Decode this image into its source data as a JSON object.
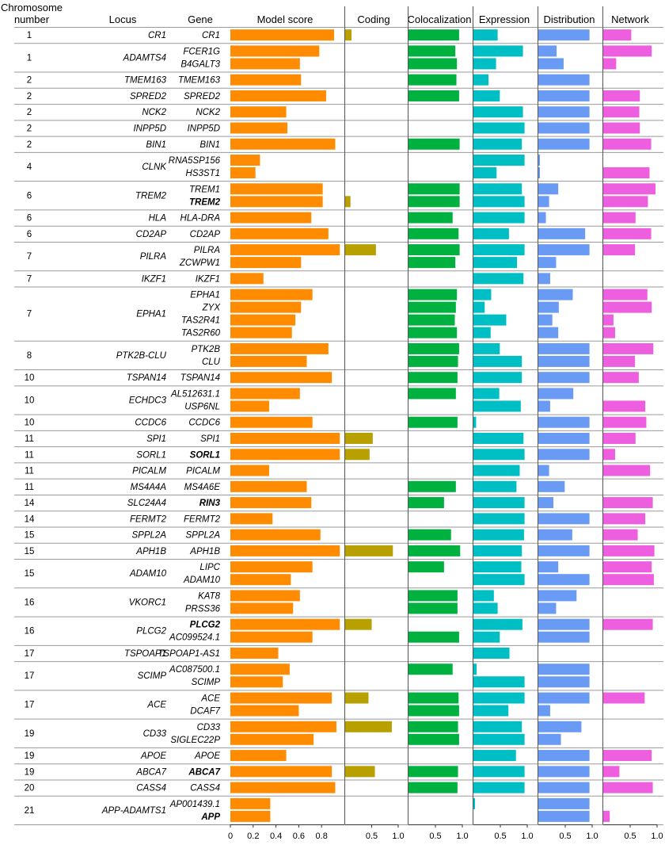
{
  "headers": {
    "chromosome": [
      "Chromosome",
      "number"
    ],
    "locus": "Locus",
    "gene": "Gene",
    "model_score": "Model score",
    "coding": "Coding",
    "colocalization": "Colocalization",
    "expression": "Expression",
    "distribution": "Distribution",
    "network": "Network"
  },
  "colors": {
    "model_score": "#ff8c00",
    "coding": "#b8a000",
    "colocalization": "#00b140",
    "expression": "#00bfc4",
    "distribution": "#6a9bf4",
    "network": "#ee5fe0"
  },
  "chart_data": {
    "type": "bar",
    "orientation": "horizontal",
    "panels": [
      {
        "key": "model_score",
        "ticks": [
          "0",
          "0.2",
          "0.4",
          "0.6",
          "0.8"
        ],
        "xlim": [
          0,
          1
        ]
      },
      {
        "key": "coding",
        "ticks": [
          "0.5",
          "1.0"
        ],
        "xlim": [
          0,
          1
        ]
      },
      {
        "key": "colocalization",
        "ticks": [
          "0.5",
          "1.0"
        ],
        "xlim": [
          0,
          1
        ]
      },
      {
        "key": "expression",
        "ticks": [
          "0.5",
          "1.0"
        ],
        "xlim": [
          0,
          1
        ]
      },
      {
        "key": "distribution",
        "ticks": [
          "0.5",
          "1.0"
        ],
        "xlim": [
          0,
          1
        ]
      },
      {
        "key": "network",
        "ticks": [
          "0.5",
          "1.0"
        ],
        "xlim": [
          0,
          1
        ]
      }
    ],
    "loci": [
      {
        "chr": "1",
        "locus": "CR1",
        "genes": [
          {
            "name": "CR1",
            "model_score": 0.91,
            "coding": 0.12,
            "colocalization": 0.94,
            "expression": 0.45,
            "distribution": 0.95,
            "network": 0.52
          }
        ]
      },
      {
        "chr": "1",
        "locus": "ADAMTS4",
        "genes": [
          {
            "name": "FCER1G",
            "model_score": 0.78,
            "colocalization": 0.87,
            "expression": 0.92,
            "distribution": 0.34,
            "network": 0.9
          },
          {
            "name": "B4GALT3",
            "model_score": 0.61,
            "colocalization": 0.9,
            "expression": 0.42,
            "distribution": 0.47,
            "network": 0.24
          }
        ]
      },
      {
        "chr": "2",
        "locus": "TMEM163",
        "genes": [
          {
            "name": "TMEM163",
            "model_score": 0.62,
            "colocalization": 0.89,
            "expression": 0.28,
            "distribution": 0.95
          }
        ]
      },
      {
        "chr": "2",
        "locus": "SPRED2",
        "genes": [
          {
            "name": "SPRED2",
            "model_score": 0.84,
            "colocalization": 0.94,
            "expression": 0.49,
            "distribution": 0.95,
            "network": 0.68
          }
        ]
      },
      {
        "chr": "2",
        "locus": "NCK2",
        "genes": [
          {
            "name": "NCK2",
            "model_score": 0.49,
            "expression": 0.92,
            "distribution": 0.95,
            "network": 0.67
          }
        ]
      },
      {
        "chr": "2",
        "locus": "INPP5D",
        "genes": [
          {
            "name": "INPP5D",
            "model_score": 0.5,
            "expression": 0.95,
            "distribution": 0.95,
            "network": 0.68
          }
        ]
      },
      {
        "chr": "2",
        "locus": "BIN1",
        "genes": [
          {
            "name": "BIN1",
            "model_score": 0.92,
            "colocalization": 0.95,
            "expression": 0.9,
            "distribution": 0.95,
            "network": 0.89
          }
        ]
      },
      {
        "chr": "4",
        "locus": "CLNK",
        "genes": [
          {
            "name": "RNA5SP156",
            "model_score": 0.26,
            "expression": 0.95,
            "distribution": 0.03
          },
          {
            "name": "HS3ST1",
            "model_score": 0.22,
            "expression": 0.43,
            "distribution": 0.03,
            "network": 0.86
          }
        ]
      },
      {
        "chr": "6",
        "locus": "TREM2",
        "genes": [
          {
            "name": "TREM1",
            "model_score": 0.81,
            "colocalization": 0.95,
            "expression": 0.9,
            "distribution": 0.37,
            "network": 0.97
          },
          {
            "name": "TREM2",
            "bold": true,
            "model_score": 0.81,
            "coding": 0.1,
            "colocalization": 0.95,
            "expression": 0.95,
            "distribution": 0.2,
            "network": 0.83
          }
        ]
      },
      {
        "chr": "6",
        "locus": "HLA",
        "genes": [
          {
            "name": "HLA-DRA",
            "model_score": 0.71,
            "colocalization": 0.82,
            "expression": 0.95,
            "distribution": 0.14,
            "network": 0.6
          }
        ]
      },
      {
        "chr": "6",
        "locus": "CD2AP",
        "genes": [
          {
            "name": "CD2AP",
            "model_score": 0.86,
            "colocalization": 0.93,
            "expression": 0.66,
            "distribution": 0.87,
            "network": 0.89
          }
        ]
      },
      {
        "chr": "7",
        "locus": "PILRA",
        "genes": [
          {
            "name": "PILRA",
            "model_score": 0.96,
            "coding": 0.58,
            "colocalization": 0.95,
            "expression": 0.95,
            "distribution": 0.95,
            "network": 0.59
          },
          {
            "name": "ZCWPW1",
            "model_score": 0.62,
            "colocalization": 0.87,
            "expression": 0.81,
            "distribution": 0.33
          }
        ]
      },
      {
        "chr": "7",
        "locus": "IKZF1",
        "genes": [
          {
            "name": "IKZF1",
            "model_score": 0.29,
            "expression": 0.93,
            "distribution": 0.22
          }
        ]
      },
      {
        "chr": "7",
        "locus": "EPHA1",
        "genes": [
          {
            "name": "EPHA1",
            "model_score": 0.72,
            "colocalization": 0.9,
            "expression": 0.33,
            "distribution": 0.64,
            "network": 0.82
          },
          {
            "name": "ZYX",
            "model_score": 0.62,
            "colocalization": 0.88,
            "expression": 0.21,
            "distribution": 0.38,
            "network": 0.9
          },
          {
            "name": "TAS2R41",
            "model_score": 0.57,
            "colocalization": 0.86,
            "expression": 0.61,
            "distribution": 0.26,
            "network": 0.19
          },
          {
            "name": "TAS2R60",
            "model_score": 0.54,
            "colocalization": 0.9,
            "expression": 0.32,
            "distribution": 0.37,
            "network": 0.22
          }
        ]
      },
      {
        "chr": "8",
        "locus": "PTK2B-CLU",
        "genes": [
          {
            "name": "PTK2B",
            "model_score": 0.86,
            "colocalization": 0.94,
            "expression": 0.49,
            "distribution": 0.95,
            "network": 0.93
          },
          {
            "name": "CLU",
            "model_score": 0.67,
            "colocalization": 0.92,
            "expression": 0.9,
            "distribution": 0.95,
            "network": 0.59
          }
        ]
      },
      {
        "chr": "10",
        "locus": "TSPAN14",
        "genes": [
          {
            "name": "TSPAN14",
            "model_score": 0.89,
            "colocalization": 0.91,
            "expression": 0.9,
            "distribution": 0.95,
            "network": 0.66
          }
        ]
      },
      {
        "chr": "10",
        "locus": "ECHDC3",
        "genes": [
          {
            "name": "AL512631.1",
            "model_score": 0.61,
            "colocalization": 0.88,
            "expression": 0.48,
            "distribution": 0.65
          },
          {
            "name": "USP6NL",
            "model_score": 0.34,
            "expression": 0.88,
            "distribution": 0.22,
            "network": 0.78
          }
        ]
      },
      {
        "chr": "10",
        "locus": "CCDC6",
        "genes": [
          {
            "name": "CCDC6",
            "model_score": 0.72,
            "colocalization": 0.91,
            "expression": 0.05,
            "distribution": 0.95,
            "network": 0.8
          }
        ]
      },
      {
        "chr": "11",
        "locus": "SPI1",
        "genes": [
          {
            "name": "SPI1",
            "model_score": 0.96,
            "coding": 0.52,
            "expression": 0.93,
            "distribution": 0.95,
            "network": 0.6
          }
        ]
      },
      {
        "chr": "11",
        "locus": "SORL1",
        "genes": [
          {
            "name": "SORL1",
            "bold": true,
            "model_score": 0.96,
            "coding": 0.46,
            "expression": 0.95,
            "distribution": 0.95,
            "network": 0.22
          }
        ]
      },
      {
        "chr": "11",
        "locus": "PICALM",
        "genes": [
          {
            "name": "PICALM",
            "model_score": 0.34,
            "expression": 0.86,
            "distribution": 0.2,
            "network": 0.87
          }
        ]
      },
      {
        "chr": "11",
        "locus": "MS4A4A",
        "genes": [
          {
            "name": "MS4A6E",
            "model_score": 0.67,
            "colocalization": 0.88,
            "expression": 0.8,
            "distribution": 0.49
          }
        ]
      },
      {
        "chr": "14",
        "locus": "SLC24A4",
        "genes": [
          {
            "name": "RIN3",
            "bold": true,
            "model_score": 0.71,
            "colocalization": 0.66,
            "expression": 0.95,
            "distribution": 0.28,
            "network": 0.92
          }
        ]
      },
      {
        "chr": "14",
        "locus": "FERMT2",
        "genes": [
          {
            "name": "FERMT2",
            "model_score": 0.37,
            "expression": 0.95,
            "distribution": 0.95,
            "network": 0.78
          }
        ]
      },
      {
        "chr": "15",
        "locus": "SPPL2A",
        "genes": [
          {
            "name": "SPPL2A",
            "model_score": 0.79,
            "colocalization": 0.79,
            "expression": 0.94,
            "distribution": 0.63,
            "network": 0.64
          }
        ]
      },
      {
        "chr": "15",
        "locus": "APH1B",
        "genes": [
          {
            "name": "APH1B",
            "model_score": 0.96,
            "coding": 0.9,
            "colocalization": 0.96,
            "expression": 0.9,
            "distribution": 0.95,
            "network": 0.95
          }
        ]
      },
      {
        "chr": "15",
        "locus": "ADAM10",
        "genes": [
          {
            "name": "LIPC",
            "model_score": 0.72,
            "colocalization": 0.66,
            "expression": 0.89,
            "distribution": 0.37,
            "network": 0.9
          },
          {
            "name": "ADAM10",
            "model_score": 0.53,
            "expression": 0.95,
            "distribution": 0.95,
            "network": 0.94
          }
        ]
      },
      {
        "chr": "16",
        "locus": "VKORC1",
        "genes": [
          {
            "name": "KAT8",
            "model_score": 0.61,
            "colocalization": 0.91,
            "expression": 0.38,
            "distribution": 0.71
          },
          {
            "name": "PRSS36",
            "model_score": 0.55,
            "colocalization": 0.91,
            "expression": 0.45,
            "distribution": 0.33
          }
        ]
      },
      {
        "chr": "16",
        "locus": "PLCG2",
        "genes": [
          {
            "name": "PLCG2",
            "bold": true,
            "model_score": 0.96,
            "coding": 0.5,
            "expression": 0.91,
            "distribution": 0.95,
            "network": 0.92
          },
          {
            "name": "AC099524.1",
            "model_score": 0.72,
            "colocalization": 0.94,
            "expression": 0.49,
            "distribution": 0.95
          }
        ]
      },
      {
        "chr": "17",
        "locus": "TSPOAP1",
        "genes": [
          {
            "name": "TSPOAP1-AS1",
            "model_score": 0.42,
            "expression": 0.67
          }
        ]
      },
      {
        "chr": "17",
        "locus": "SCIMP",
        "genes": [
          {
            "name": "AC087500.1",
            "model_score": 0.52,
            "colocalization": 0.82,
            "expression": 0.06,
            "distribution": 0.95
          },
          {
            "name": "SCIMP",
            "model_score": 0.46,
            "expression": 0.95,
            "distribution": 0.95
          }
        ]
      },
      {
        "chr": "17",
        "locus": "ACE",
        "genes": [
          {
            "name": "ACE",
            "model_score": 0.89,
            "coding": 0.44,
            "colocalization": 0.93,
            "expression": 0.95,
            "distribution": 0.95,
            "network": 0.77
          },
          {
            "name": "DCAF7",
            "model_score": 0.6,
            "colocalization": 0.94,
            "expression": 0.65,
            "distribution": 0.22
          }
        ]
      },
      {
        "chr": "19",
        "locus": "CD33",
        "genes": [
          {
            "name": "CD33",
            "model_score": 0.93,
            "coding": 0.88,
            "colocalization": 0.92,
            "expression": 0.9,
            "distribution": 0.8
          },
          {
            "name": "SIGLEC22P",
            "model_score": 0.73,
            "colocalization": 0.94,
            "expression": 0.95,
            "distribution": 0.42
          }
        ]
      },
      {
        "chr": "19",
        "locus": "APOE",
        "genes": [
          {
            "name": "APOE",
            "model_score": 0.49,
            "expression": 0.79,
            "distribution": 0.95,
            "network": 0.9
          }
        ]
      },
      {
        "chr": "19",
        "locus": "ABCA7",
        "genes": [
          {
            "name": "ABCA7",
            "bold": true,
            "model_score": 0.89,
            "coding": 0.56,
            "colocalization": 0.92,
            "expression": 0.95,
            "distribution": 0.95,
            "network": 0.3
          }
        ]
      },
      {
        "chr": "20",
        "locus": "CASS4",
        "genes": [
          {
            "name": "CASS4",
            "model_score": 0.92,
            "colocalization": 0.91,
            "expression": 0.95,
            "distribution": 0.95,
            "network": 0.92
          }
        ]
      },
      {
        "chr": "21",
        "locus": "APP-ADAMTS1",
        "genes": [
          {
            "name": "AP001439.1",
            "model_score": 0.35,
            "expression": 0.03,
            "distribution": 0.95
          },
          {
            "name": "APP",
            "bold": true,
            "model_score": 0.35,
            "distribution": 0.95,
            "network": 0.12
          }
        ]
      }
    ]
  }
}
